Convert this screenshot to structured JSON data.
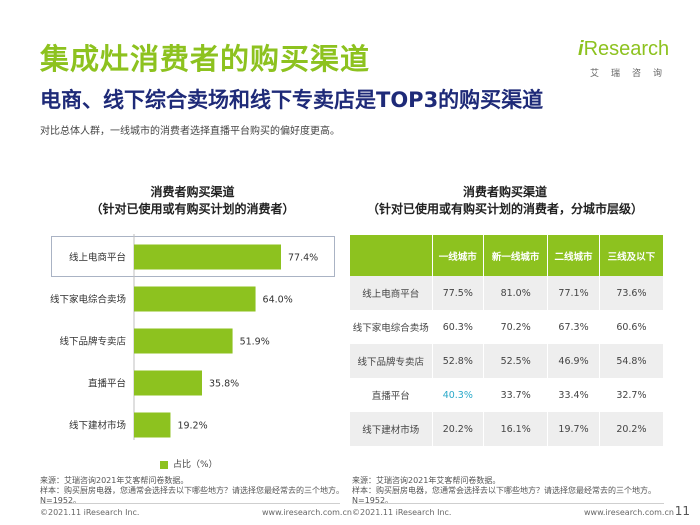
{
  "header": {
    "title": "集成灶消费者的购买渠道",
    "subtitle": "电商、线下综合卖场和线下专卖店是TOP3的购买渠道",
    "description": "对比总体人群，一线城市的消费者选择直播平台购买的偏好度更高。"
  },
  "logo": {
    "wordmark_i": "i",
    "wordmark_rest": "Research",
    "chinese": "艾瑞咨询"
  },
  "left_chart": {
    "heading_line1": "消费者购买渠道",
    "heading_line2": "（针对已使用或有购买计划的消费者）",
    "legend": "占比（%）"
  },
  "chart_data": [
    {
      "type": "bar",
      "orientation": "horizontal",
      "title": "消费者购买渠道（针对已使用或有购买计划的消费者）",
      "categories": [
        "线上电商平台",
        "线下家电综合卖场",
        "线下品牌专卖店",
        "直播平台",
        "线下建材市场"
      ],
      "values": [
        77.4,
        64.0,
        51.9,
        35.8,
        19.2
      ],
      "value_labels": [
        "77.4%",
        "64.0%",
        "51.9%",
        "35.8%",
        "19.2%"
      ],
      "series": [
        {
          "name": "占比（%）",
          "values": [
            77.4,
            64.0,
            51.9,
            35.8,
            19.2
          ]
        }
      ],
      "xlim": [
        0,
        100
      ],
      "color": "#8dc21f",
      "legend": "bottom"
    },
    {
      "type": "table",
      "title": "消费者购买渠道（针对已使用或有购买计划的消费者，分城市层级）",
      "columns": [
        "一线城市",
        "新一线城市",
        "二线城市",
        "三线及以下"
      ],
      "rows": [
        {
          "label": "线上电商平台",
          "values": [
            "77.5%",
            "81.0%",
            "77.1%",
            "73.6%"
          ]
        },
        {
          "label": "线下家电综合卖场",
          "values": [
            "60.3%",
            "70.2%",
            "67.3%",
            "60.6%"
          ]
        },
        {
          "label": "线下品牌专卖店",
          "values": [
            "52.8%",
            "52.5%",
            "46.9%",
            "54.8%"
          ]
        },
        {
          "label": "直播平台",
          "values": [
            "40.3%",
            "33.7%",
            "33.4%",
            "32.7%"
          ]
        },
        {
          "label": "线下建材市场",
          "values": [
            "20.2%",
            "16.1%",
            "19.7%",
            "20.2%"
          ]
        }
      ],
      "highlight_color": "#2aa9c9"
    }
  ],
  "right_chart": {
    "heading_line1": "消费者购买渠道",
    "heading_line2": "（针对已使用或有购买计划的消费者，分城市层级）"
  },
  "source": {
    "line1": "来源：艾瑞咨询2021年艾客帮问卷数据。",
    "line2": "样本：购买厨房电器，您通常会选择去以下哪些地方？请选择您最经常去的三个地方。",
    "line3": "N=1952。"
  },
  "footer": {
    "copyright": "©2021.11 iResearch Inc.",
    "website": "www.iresearch.com.cn",
    "page": "11"
  },
  "colors": {
    "accent": "#8dc21f",
    "subtitle": "#1e2a78",
    "highlight": "#2aa9c9"
  }
}
